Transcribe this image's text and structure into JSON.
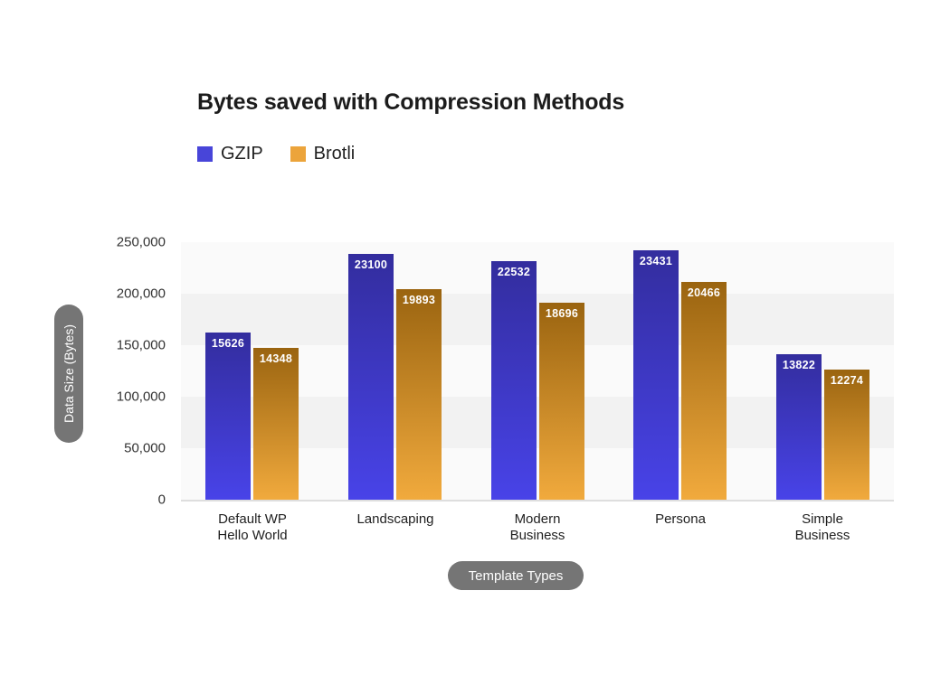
{
  "title": "Bytes saved with Compression Methods",
  "legend": [
    {
      "label": "GZIP",
      "color": "#4845d9"
    },
    {
      "label": "Brotli",
      "color": "#eca43b"
    }
  ],
  "y_axis": {
    "label": "Data Size (Bytes)",
    "ticks": [
      "250,000",
      "200,000",
      "150,000",
      "100,000",
      "50,000",
      "0"
    ]
  },
  "x_axis": {
    "label": "Template Types",
    "category_labels": [
      "Default WP\nHello World",
      "Landscaping",
      "Modern\nBusiness",
      "Persona",
      "Simple\nBusiness"
    ]
  },
  "colors": {
    "gzip_gradient_top": "#332d9e",
    "gzip_gradient_bottom": "#4843e8",
    "brotli_gradient_top": "#9a6410",
    "brotli_gradient_bottom": "#f1aa3d",
    "legend_gzip": "#4845d9",
    "legend_brotli": "#eca43b",
    "pill_background": "#757575",
    "band_light": "#fafafa",
    "band_dark": "#f2f2f2"
  },
  "chart_data": {
    "type": "bar",
    "title": "Bytes saved with Compression Methods",
    "categories": [
      "Default WP Hello World",
      "Landscaping",
      "Modern Business",
      "Persona",
      "Simple Business"
    ],
    "series": [
      {
        "name": "GZIP",
        "values": [
          162000,
          238500,
          231500,
          242000,
          141000
        ],
        "bar_labels": [
          "15626",
          "23100",
          "22532",
          "23431",
          "13822"
        ]
      },
      {
        "name": "Brotli",
        "values": [
          147000,
          204500,
          191500,
          211500,
          126500
        ],
        "bar_labels": [
          "14348",
          "19893",
          "18696",
          "20466",
          "12274"
        ]
      }
    ],
    "xlabel": "Template Types",
    "ylabel": "Data Size (Bytes)",
    "ylim": [
      0,
      250000
    ],
    "y_tick_step": 50000,
    "grid": "alternating-horizontal-bands",
    "legend_position": "top-left",
    "bar_label_position": "inside-top",
    "bar_label_color": "#ffffff"
  }
}
